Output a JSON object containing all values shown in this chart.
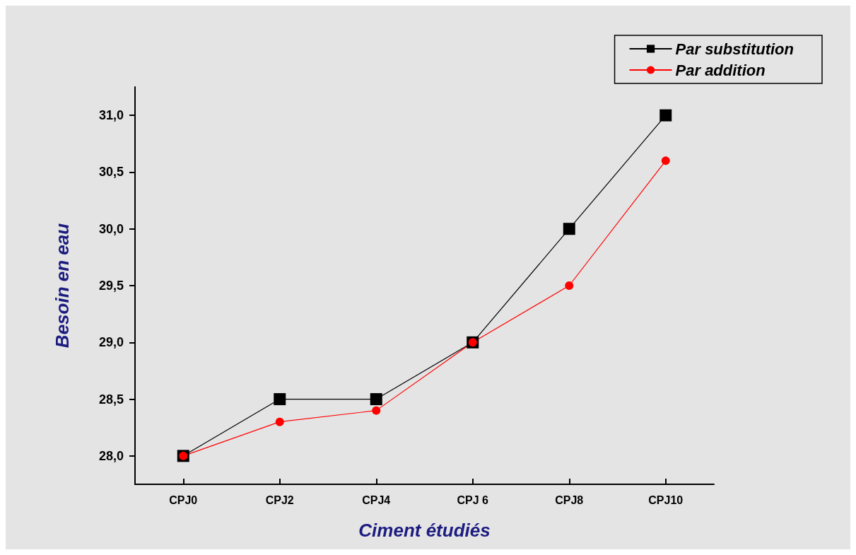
{
  "chart_data": {
    "type": "line",
    "xlabel": "Ciment étudiés",
    "ylabel": "Besoin en eau",
    "categories": [
      "CPJ0",
      "CPJ2",
      "CPJ4",
      "CPJ 6",
      "CPJ8",
      "CPJ10"
    ],
    "series": [
      {
        "name": "Par substitution",
        "color": "#000000",
        "marker": "square",
        "values": [
          28.0,
          28.5,
          28.5,
          29.0,
          30.0,
          31.0
        ]
      },
      {
        "name": "Par addition",
        "color": "#ff0000",
        "marker": "circle",
        "values": [
          28.0,
          28.3,
          28.4,
          29.0,
          29.5,
          30.6
        ]
      }
    ],
    "ylim": [
      27.75,
      31.25
    ],
    "yticks": [
      {
        "value": 28,
        "label": "28,0"
      },
      {
        "value": 28.5,
        "label": "28,5"
      },
      {
        "value": 29,
        "label": "29,0"
      },
      {
        "value": 29.5,
        "label": "29,5"
      },
      {
        "value": 30,
        "label": "30,0"
      },
      {
        "value": 30.5,
        "label": "30,5"
      },
      {
        "value": 31,
        "label": "31,0"
      }
    ],
    "grid": false,
    "legend": "top right",
    "line_style": "solid"
  }
}
